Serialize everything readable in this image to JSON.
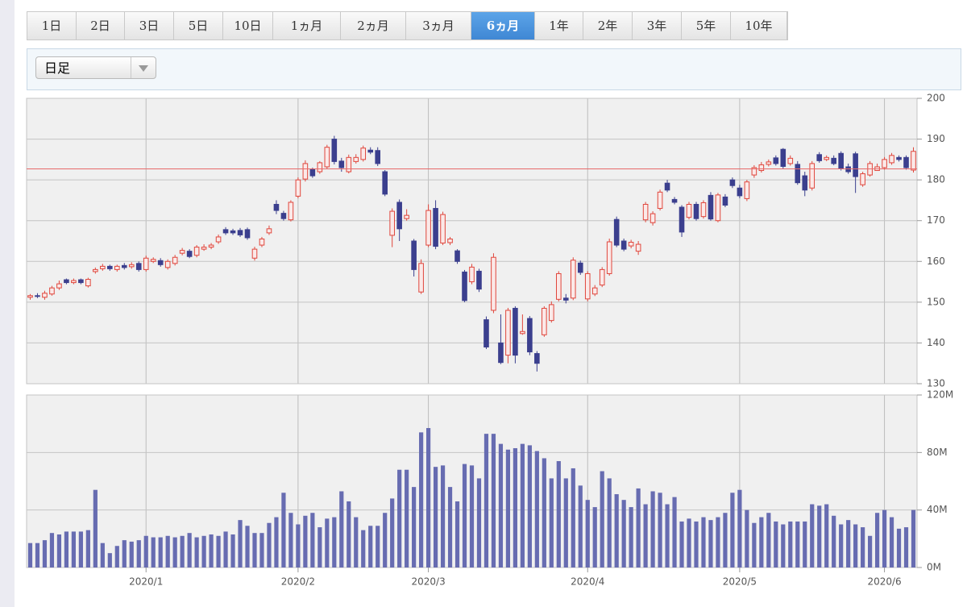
{
  "tabs": [
    "1日",
    "2日",
    "3日",
    "5日",
    "10日",
    "1ヵ月",
    "2ヵ月",
    "3ヵ月",
    "6ヵ月",
    "1年",
    "2年",
    "3年",
    "5年",
    "10年"
  ],
  "active_tab": 8,
  "interval": "日足",
  "chart_data": [
    {
      "type": "candlestick",
      "ylim": [
        130,
        200
      ],
      "yticks": [
        130,
        140,
        150,
        160,
        170,
        180,
        190,
        200
      ],
      "grid": true,
      "up_color": "#e0463c",
      "down_color": "#3b3f8e",
      "reference_line": 182.7,
      "reference_color": "#e86a6a",
      "open": [
        151.2,
        151.6,
        151.2,
        152,
        153.5,
        155.5,
        154.8,
        155.5,
        154,
        157.5,
        158.2,
        158.8,
        158,
        159,
        158.7,
        159.5,
        158,
        160,
        160.2,
        158.5,
        159.5,
        162,
        162.5,
        161.5,
        163,
        163.5,
        164.8,
        167.8,
        167.5,
        167.6,
        167.8,
        160.8,
        164,
        167,
        174,
        171.8,
        170.2,
        176,
        180.2,
        182.5,
        182,
        183.2,
        190,
        184.6,
        182,
        184.5,
        185,
        187.3,
        187.2,
        182,
        166.4,
        174.5,
        170.5,
        165,
        152.5,
        164,
        173,
        164.5,
        164.6,
        162.6,
        157.4,
        155,
        157.6,
        145.7,
        148,
        140,
        137,
        148.5,
        142.3,
        146,
        137.4,
        142,
        145.5,
        150.7,
        151,
        151,
        159.6,
        150.8,
        152,
        154.2,
        157,
        170.3,
        165,
        163.8,
        162.5,
        170.2,
        169.5,
        173,
        179.2,
        175.2,
        173.3,
        170.8,
        174,
        171,
        176.2,
        170,
        175.8,
        180,
        178,
        175.4,
        181.2,
        182.3,
        183.8,
        185.4,
        187.5,
        184,
        183.8,
        181,
        178,
        186.2,
        185,
        185.3,
        186.5,
        183.2,
        186.4,
        178.8,
        181.2,
        182.3,
        183,
        184.2,
        185.5,
        185.5,
        182.4
      ],
      "high": [
        152,
        152.2,
        152.8,
        154,
        155.3,
        155.8,
        155.8,
        155.8,
        156,
        158.5,
        159.4,
        159.2,
        159.2,
        159.6,
        159.8,
        160,
        161.4,
        161,
        160.8,
        160.5,
        161.6,
        163.3,
        163,
        164,
        164.2,
        164.5,
        166.6,
        168.4,
        168,
        168.2,
        168.3,
        163.6,
        166,
        168.8,
        175,
        172.4,
        175,
        180.6,
        184.8,
        183,
        184.6,
        188.6,
        190.8,
        185.4,
        186.2,
        186.3,
        188.4,
        188,
        188,
        182.4,
        173,
        175.2,
        172.8,
        165.5,
        160.5,
        174,
        175,
        172.2,
        166,
        163,
        157.9,
        159.4,
        158.2,
        146.5,
        162,
        147,
        148.6,
        149,
        147,
        146.6,
        138,
        149,
        150.2,
        157.6,
        152,
        161,
        160.2,
        157.6,
        154.2,
        158.6,
        165.6,
        171,
        165.6,
        165.3,
        165,
        174.6,
        172.3,
        177.6,
        180,
        175.8,
        173.8,
        174.6,
        174.6,
        175,
        177,
        176.8,
        176.5,
        180.6,
        178.8,
        180,
        183.6,
        184.4,
        185,
        186,
        187.8,
        186,
        184.6,
        182,
        184.6,
        186.8,
        186,
        186,
        187,
        184,
        186.9,
        182,
        184.6,
        184,
        185.6,
        186.6,
        186,
        186,
        188
      ],
      "low": [
        150.6,
        151,
        150.6,
        151.6,
        153,
        154.4,
        154.4,
        154.4,
        153.6,
        157,
        157.7,
        157.7,
        157.5,
        158,
        158.2,
        157.5,
        157.5,
        159.6,
        158.7,
        158,
        159,
        161.5,
        160.8,
        161,
        162.6,
        163,
        164.3,
        166.5,
        166.5,
        166,
        165.3,
        160.2,
        163.5,
        166.5,
        171.6,
        170,
        169.8,
        175.5,
        179.6,
        180.5,
        181.5,
        182.6,
        183.8,
        182,
        181.6,
        184,
        184.5,
        186.3,
        183.4,
        176,
        163.5,
        165,
        170,
        156.3,
        152,
        163.5,
        163,
        164,
        164,
        159.4,
        150,
        154.4,
        152.5,
        138.5,
        147.3,
        134.8,
        135,
        135,
        142,
        137,
        133,
        141.5,
        145,
        150.2,
        149.7,
        150.5,
        156.7,
        150.2,
        151.5,
        153.7,
        156.5,
        163.5,
        162.5,
        163.2,
        161.6,
        169.6,
        168.8,
        172.5,
        177,
        174,
        166,
        170.3,
        170,
        170.5,
        170,
        169.6,
        173.3,
        178,
        175.5,
        174.8,
        180.5,
        181.8,
        183.3,
        183.5,
        182.8,
        183.5,
        178.8,
        176,
        177.4,
        184.2,
        184.6,
        183.6,
        182.3,
        181.5,
        176.8,
        178.3,
        180.8,
        182.6,
        182.5,
        183.7,
        184.5,
        182.5,
        181.8
      ],
      "close": [
        151.6,
        151.5,
        152.2,
        153.5,
        154.5,
        154.8,
        155.3,
        154.8,
        155.6,
        158,
        158.8,
        158.2,
        158.8,
        158.5,
        159.2,
        158,
        160.8,
        160.5,
        159.2,
        160,
        161,
        162.7,
        161.2,
        163.5,
        163.5,
        164,
        166,
        167,
        167,
        166.5,
        165.8,
        163,
        165.5,
        168,
        172.5,
        170.5,
        174.5,
        180,
        184,
        181,
        184.2,
        188,
        184.5,
        183,
        185.5,
        185.5,
        187.8,
        186.8,
        184,
        176.5,
        172.3,
        168,
        171.3,
        158,
        159.5,
        172.5,
        163.7,
        171.5,
        165.5,
        160,
        150.4,
        158.6,
        153.2,
        139,
        161,
        135.2,
        148,
        137,
        142.8,
        137.8,
        135,
        148.5,
        149.4,
        157,
        150.5,
        160.3,
        157.3,
        157,
        153.5,
        158,
        164.8,
        164,
        163,
        164.7,
        164.2,
        174,
        171.7,
        177,
        177.5,
        174.5,
        167.2,
        174,
        170.5,
        174.4,
        170.4,
        176.3,
        173.8,
        178.6,
        176.1,
        179.5,
        183,
        183.7,
        184.4,
        184,
        183.3,
        185.3,
        179.3,
        177.5,
        184,
        184.7,
        185.5,
        184,
        182.8,
        182,
        180.8,
        181.5,
        184,
        183.2,
        185,
        186,
        185,
        183,
        187
      ]
    },
    {
      "type": "bar",
      "color": "#676cb1",
      "ylim": [
        0,
        120
      ],
      "yticks": [
        {
          "value": 0,
          "label": "0M"
        },
        {
          "value": 40,
          "label": "40M"
        },
        {
          "value": 80,
          "label": "80M"
        },
        {
          "value": 120,
          "label": "120M"
        }
      ],
      "grid": true,
      "categories": [
        null,
        null,
        null,
        null,
        null,
        null,
        null,
        null,
        null,
        null,
        null,
        null,
        null,
        null,
        null,
        null,
        "2020/1",
        null,
        null,
        null,
        null,
        null,
        null,
        null,
        null,
        null,
        null,
        null,
        null,
        null,
        null,
        null,
        null,
        null,
        null,
        null,
        null,
        "2020/2",
        null,
        null,
        null,
        null,
        null,
        null,
        null,
        null,
        null,
        null,
        null,
        null,
        null,
        null,
        null,
        null,
        null,
        "2020/3",
        null,
        null,
        null,
        null,
        null,
        null,
        null,
        null,
        null,
        null,
        null,
        null,
        null,
        null,
        null,
        null,
        null,
        null,
        null,
        null,
        null,
        "2020/4",
        null,
        null,
        null,
        null,
        null,
        null,
        null,
        null,
        null,
        null,
        null,
        null,
        null,
        null,
        null,
        null,
        null,
        null,
        null,
        null,
        "2020/5",
        null,
        null,
        null,
        null,
        null,
        null,
        null,
        null,
        null,
        null,
        null,
        null,
        null,
        null,
        null,
        null,
        null,
        null,
        null,
        "2020/6",
        null,
        null,
        null,
        null
      ],
      "values": [
        17,
        17,
        19,
        24,
        23,
        25,
        25,
        25,
        26,
        54,
        17,
        10,
        15,
        19,
        18,
        19,
        22,
        21,
        21,
        22,
        21,
        22,
        24,
        21,
        22,
        23,
        22,
        25,
        23,
        33,
        29,
        24,
        24,
        31,
        35,
        52,
        38,
        30,
        36,
        38,
        28,
        34,
        35,
        53,
        46,
        35,
        26,
        29,
        29,
        38,
        48,
        68,
        68,
        56,
        94,
        97,
        70,
        71,
        56,
        46,
        72,
        71,
        62,
        93,
        93,
        86,
        82,
        83,
        86,
        85,
        81,
        76,
        62,
        74,
        62,
        69,
        57,
        47,
        42,
        67,
        62,
        51,
        47,
        42,
        55,
        44,
        53,
        52,
        44,
        49,
        32,
        34,
        32,
        35,
        33,
        35,
        38,
        52,
        54,
        40,
        31,
        35,
        38,
        32,
        30,
        32,
        32,
        32,
        44,
        43,
        44,
        36,
        30,
        33,
        30,
        28,
        22,
        38,
        40,
        35,
        27,
        28,
        40
      ]
    }
  ]
}
